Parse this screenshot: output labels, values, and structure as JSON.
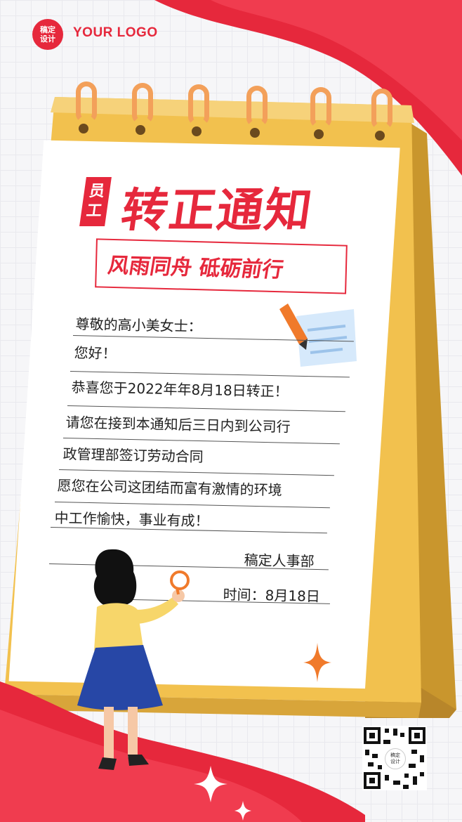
{
  "logo": {
    "badge_text": "稿定设计",
    "text": "YOUR LOGO"
  },
  "title": {
    "badge": "员工",
    "main": "转正通知",
    "subtitle": "风雨同舟 砥砺前行"
  },
  "letter": {
    "greeting": "尊敬的高小美女士：",
    "hello": "您好！",
    "line1": "恭喜您于2022年年8月18日转正！",
    "line2": "请您在接到本通知后三日内到公司行",
    "line3": "政管理部签订劳动合同",
    "line4": "愿您在公司这团结而富有激情的环境",
    "line5": "中工作愉快，事业有成！",
    "signature": "稿定人事部",
    "date": "时间：8月18日"
  },
  "qr": {
    "center_text": "稿定设计"
  },
  "colors": {
    "brand_red": "#e6283c",
    "calendar_gold": "#f2c14e",
    "ring_orange": "#f3a05a"
  }
}
